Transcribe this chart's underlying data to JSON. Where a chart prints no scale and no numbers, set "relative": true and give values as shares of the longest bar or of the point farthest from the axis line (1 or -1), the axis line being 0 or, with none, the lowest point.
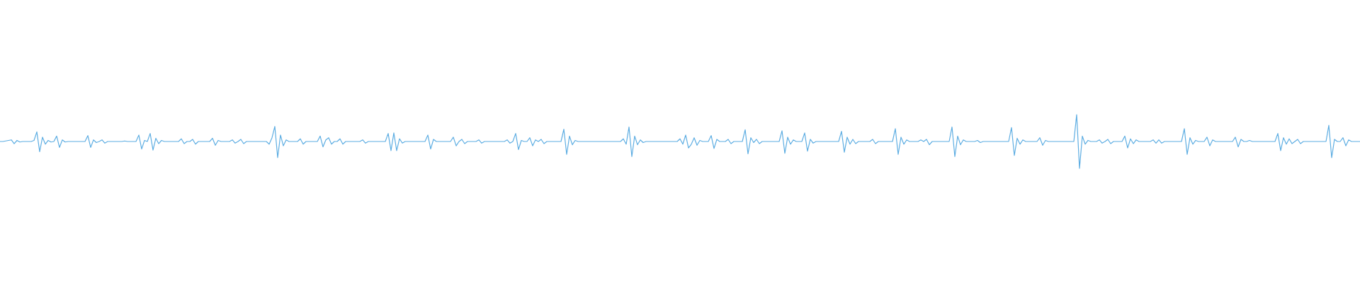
{
  "chart_data": {
    "type": "line",
    "relative": true,
    "color": "#5dade2",
    "categories": [
      null,
      null,
      null,
      null,
      null,
      null,
      null,
      null,
      null,
      null,
      null,
      null,
      null,
      null,
      null,
      null,
      null,
      null,
      null,
      null,
      null,
      null,
      null,
      null,
      null,
      null,
      null,
      null,
      null,
      null,
      null,
      null,
      null,
      null,
      null,
      null,
      null,
      null,
      null,
      null,
      null,
      null,
      null,
      null,
      null,
      null,
      null,
      null,
      null,
      null,
      null,
      null,
      null,
      null,
      null,
      null,
      null,
      null,
      null,
      null,
      null,
      null,
      null,
      null,
      null,
      null,
      null,
      null,
      null,
      null,
      null,
      null,
      null,
      null,
      null,
      null,
      null,
      null,
      null,
      null,
      null,
      null,
      null,
      null,
      null,
      null,
      null,
      null,
      null,
      null,
      null,
      null,
      null,
      null,
      null,
      null,
      null,
      null,
      null,
      null,
      null,
      null,
      null,
      null,
      null,
      null,
      null,
      null,
      null,
      null,
      null,
      null,
      null,
      null,
      null,
      null,
      null,
      null,
      null,
      null,
      null,
      null,
      null,
      null,
      null,
      null,
      null,
      null,
      null,
      null,
      null,
      null,
      null,
      null,
      null,
      null,
      null,
      null,
      null,
      null,
      null,
      null,
      null,
      null,
      null,
      null,
      null,
      null,
      null,
      null,
      null,
      null,
      null,
      null,
      null,
      null,
      null,
      null,
      null,
      null,
      null,
      null,
      null,
      null,
      null,
      null,
      null,
      null,
      null,
      null,
      null,
      null,
      null,
      null,
      null,
      null,
      null,
      null,
      null,
      null,
      null,
      null,
      null,
      null,
      null,
      null,
      null,
      null,
      null,
      null,
      null,
      null,
      null,
      null,
      null,
      null,
      null,
      null,
      null,
      null,
      null,
      null,
      null,
      null,
      null,
      null,
      null,
      null,
      null,
      null,
      null,
      null,
      null,
      null,
      null,
      null,
      null,
      null,
      null,
      null,
      null,
      null,
      null,
      null,
      null,
      null,
      null,
      null,
      null,
      null,
      null,
      null,
      null,
      null,
      null,
      null,
      null,
      null,
      null,
      null,
      null,
      null,
      null,
      null,
      null,
      null,
      null,
      null,
      null,
      null,
      null,
      null,
      null,
      null,
      null,
      null,
      null,
      null,
      null,
      null,
      null,
      null,
      null,
      null,
      null,
      null,
      null,
      null,
      null,
      null,
      null,
      null,
      null,
      null,
      null,
      null,
      null,
      null,
      null,
      null,
      null,
      null,
      null,
      null,
      null,
      null,
      null,
      null,
      null,
      null,
      null,
      null,
      null,
      null,
      null,
      null,
      null,
      null,
      null,
      null,
      null,
      null,
      null,
      null,
      null,
      null,
      null,
      null,
      null,
      null,
      null,
      null,
      null,
      null,
      null,
      null,
      null,
      null,
      null,
      null,
      null,
      null,
      null,
      null,
      null,
      null,
      null,
      null,
      null,
      null,
      null,
      null,
      null,
      null,
      null,
      null,
      null,
      null,
      null,
      null,
      null,
      null,
      null,
      null,
      null,
      null,
      null,
      null,
      null,
      null,
      null,
      null,
      null,
      null,
      null,
      null,
      null,
      null,
      null,
      null,
      null,
      null,
      null,
      null,
      null,
      null,
      null,
      null,
      null,
      null,
      null,
      null,
      null,
      null,
      null,
      null,
      null,
      null,
      null,
      null,
      null,
      null,
      null,
      null,
      null,
      null,
      null,
      null,
      null,
      null,
      null,
      null,
      null,
      null,
      null,
      null,
      null,
      null,
      null,
      null,
      null,
      null,
      null,
      null,
      null,
      null,
      null,
      null,
      null,
      null,
      null,
      null,
      null,
      null,
      null,
      null,
      null,
      null,
      null,
      null,
      null,
      null,
      null,
      null,
      null,
      null,
      null,
      null,
      null,
      null,
      null,
      null,
      null,
      null,
      null,
      null,
      null,
      null,
      null,
      null,
      null,
      null,
      null,
      null,
      null,
      null,
      null,
      null,
      null,
      null,
      null,
      null,
      null,
      null,
      null,
      null,
      null,
      null,
      null,
      null,
      null,
      null,
      null,
      null,
      null,
      null,
      null,
      null,
      null,
      null,
      null,
      null,
      null,
      null,
      null,
      null,
      null,
      null,
      null,
      null,
      null
    ],
    "values": [
      0.5,
      0.5,
      0.51,
      0.52,
      0.53,
      0.46,
      0.52,
      0.49,
      0.5,
      0.5,
      0.5,
      0.5,
      0.52,
      0.68,
      0.31,
      0.58,
      0.45,
      0.52,
      0.49,
      0.5,
      0.6,
      0.39,
      0.53,
      0.49,
      0.5,
      0.5,
      0.5,
      0.5,
      0.5,
      0.5,
      0.5,
      0.61,
      0.39,
      0.53,
      0.48,
      0.5,
      0.53,
      0.47,
      0.5,
      0.5,
      0.5,
      0.5,
      0.5,
      0.5,
      0.51,
      0.5,
      0.5,
      0.5,
      0.5,
      0.62,
      0.36,
      0.52,
      0.5,
      0.65,
      0.34,
      0.56,
      0.46,
      0.52,
      0.5,
      0.5,
      0.5,
      0.5,
      0.5,
      0.5,
      0.55,
      0.46,
      0.5,
      0.5,
      0.54,
      0.45,
      0.5,
      0.5,
      0.5,
      0.5,
      0.5,
      0.56,
      0.43,
      0.52,
      0.5,
      0.5,
      0.5,
      0.5,
      0.53,
      0.47,
      0.5,
      0.54,
      0.46,
      0.5,
      0.5,
      0.5,
      0.5,
      0.5,
      0.5,
      0.5,
      0.5,
      0.45,
      0.57,
      0.78,
      0.2,
      0.62,
      0.42,
      0.53,
      0.5,
      0.5,
      0.5,
      0.5,
      0.55,
      0.45,
      0.5,
      0.5,
      0.5,
      0.5,
      0.5,
      0.6,
      0.4,
      0.53,
      0.57,
      0.45,
      0.5,
      0.5,
      0.55,
      0.45,
      0.5,
      0.5,
      0.5,
      0.5,
      0.5,
      0.5,
      0.53,
      0.47,
      0.5,
      0.5,
      0.5,
      0.5,
      0.5,
      0.5,
      0.5,
      0.65,
      0.33,
      0.66,
      0.33,
      0.55,
      0.47,
      0.5,
      0.5,
      0.5,
      0.5,
      0.5,
      0.5,
      0.5,
      0.5,
      0.62,
      0.36,
      0.54,
      0.5,
      0.5,
      0.5,
      0.5,
      0.5,
      0.5,
      0.58,
      0.42,
      0.5,
      0.54,
      0.46,
      0.5,
      0.5,
      0.5,
      0.5,
      0.53,
      0.47,
      0.5,
      0.5,
      0.5,
      0.5,
      0.5,
      0.5,
      0.5,
      0.5,
      0.53,
      0.47,
      0.5,
      0.65,
      0.35,
      0.52,
      0.5,
      0.5,
      0.57,
      0.42,
      0.53,
      0.5,
      0.54,
      0.46,
      0.5,
      0.5,
      0.5,
      0.5,
      0.5,
      0.5,
      0.73,
      0.26,
      0.6,
      0.44,
      0.52,
      0.5,
      0.5,
      0.5,
      0.5,
      0.5,
      0.5,
      0.5,
      0.5,
      0.5,
      0.5,
      0.5,
      0.5,
      0.5,
      0.5,
      0.5,
      0.5,
      0.55,
      0.45,
      0.77,
      0.22,
      0.6,
      0.44,
      0.53,
      0.48,
      0.5,
      0.5,
      0.5,
      0.5,
      0.5,
      0.5,
      0.5,
      0.5,
      0.5,
      0.5,
      0.5,
      0.5,
      0.55,
      0.45,
      0.62,
      0.38,
      0.45,
      0.57,
      0.43,
      0.52,
      0.5,
      0.5,
      0.5,
      0.61,
      0.37,
      0.54,
      0.5,
      0.5,
      0.5,
      0.54,
      0.46,
      0.5,
      0.5,
      0.5,
      0.5,
      0.72,
      0.27,
      0.57,
      0.48,
      0.54,
      0.46,
      0.5,
      0.5,
      0.5,
      0.5,
      0.5,
      0.5,
      0.5,
      0.7,
      0.28,
      0.58,
      0.45,
      0.53,
      0.5,
      0.5,
      0.5,
      0.66,
      0.32,
      0.54,
      0.47,
      0.5,
      0.5,
      0.5,
      0.5,
      0.5,
      0.5,
      0.5,
      0.5,
      0.5,
      0.69,
      0.3,
      0.58,
      0.45,
      0.54,
      0.46,
      0.5,
      0.5,
      0.5,
      0.5,
      0.5,
      0.54,
      0.46,
      0.5,
      0.5,
      0.5,
      0.5,
      0.5,
      0.5,
      0.74,
      0.26,
      0.58,
      0.45,
      0.53,
      0.5,
      0.5,
      0.5,
      0.5,
      0.53,
      0.5,
      0.54,
      0.44,
      0.5,
      0.5,
      0.5,
      0.5,
      0.5,
      0.5,
      0.5,
      0.77,
      0.22,
      0.6,
      0.44,
      0.53,
      0.5,
      0.5,
      0.5,
      0.5,
      0.52,
      0.48,
      0.5,
      0.5,
      0.5,
      0.5,
      0.5,
      0.5,
      0.5,
      0.5,
      0.5,
      0.5,
      0.76,
      0.24,
      0.56,
      0.45,
      0.53,
      0.5,
      0.5,
      0.5,
      0.5,
      0.5,
      0.57,
      0.43,
      0.52,
      0.5,
      0.5,
      0.5,
      0.5,
      0.5,
      0.5,
      0.5,
      0.5,
      0.5,
      0.5,
      1,
      0,
      0.6,
      0.45,
      0.52,
      0.5,
      0.5,
      0.5,
      0.53,
      0.47,
      0.5,
      0.54,
      0.46,
      0.5,
      0.5,
      0.5,
      0.5,
      0.6,
      0.38,
      0.55,
      0.46,
      0.53,
      0.5,
      0.5,
      0.5,
      0.5,
      0.5,
      0.53,
      0.47,
      0.53,
      0.47,
      0.5,
      0.5,
      0.5,
      0.5,
      0.5,
      0.5,
      0.5,
      0.74,
      0.26,
      0.57,
      0.45,
      0.52,
      0.5,
      0.5,
      0.5,
      0.58,
      0.42,
      0.53,
      0.5,
      0.5,
      0.5,
      0.5,
      0.5,
      0.5,
      0.5,
      0.58,
      0.4,
      0.54,
      0.5,
      0.5,
      0.52,
      0.5,
      0.5,
      0.5,
      0.5,
      0.5,
      0.5,
      0.5,
      0.5,
      0.5,
      0.65,
      0.33,
      0.57,
      0.45,
      0.55,
      0.46,
      0.5,
      0.54,
      0.46,
      0.5,
      0.5,
      0.5,
      0.5,
      0.5,
      0.5,
      0.5,
      0.5,
      0.5,
      0.8,
      0.2,
      0.54,
      0.5,
      0.5,
      0.57,
      0.42,
      0.53,
      0.5,
      0.5,
      0.5,
      0.5
    ]
  }
}
